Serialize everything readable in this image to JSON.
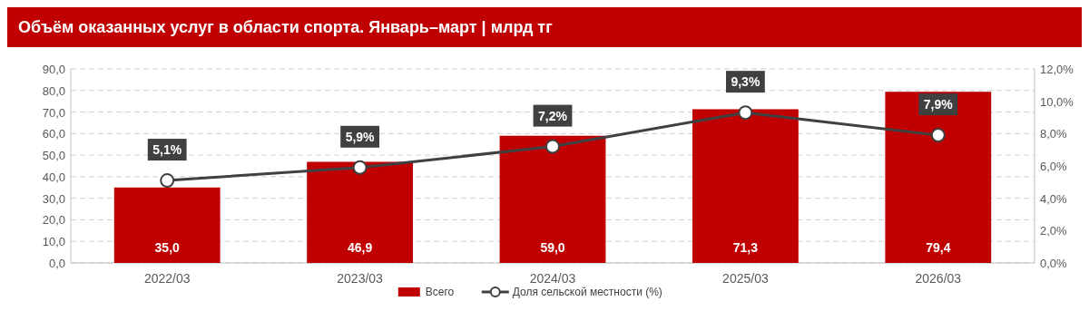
{
  "chart_data": {
    "type": "bar",
    "title": "Объём оказанных услуг в области спорта. Январь–март | млрд тг",
    "categories": [
      "2022/03",
      "2023/03",
      "2024/03",
      "2025/03",
      "2026/03"
    ],
    "series": [
      {
        "name": "Всего",
        "color": "#c00000",
        "values": [
          35.0,
          46.9,
          59.0,
          71.3,
          79.4
        ],
        "value_labels": [
          "35,0",
          "46,9",
          "59,0",
          "71,3",
          "79,4"
        ]
      },
      {
        "name": "Доля сельской местности (%)",
        "type": "line",
        "axis": "y2",
        "color": "#404040",
        "marker": "circle",
        "values": [
          5.1,
          5.9,
          7.2,
          9.3,
          7.9
        ],
        "value_labels": [
          "5,1%",
          "5,9%",
          "7,2%",
          "9,3%",
          "7,9%"
        ]
      }
    ],
    "ylim": [
      0,
      90
    ],
    "yticks": [
      {
        "value": 0,
        "label": "0,0"
      },
      {
        "value": 10,
        "label": "10,0"
      },
      {
        "value": 20,
        "label": "20,0"
      },
      {
        "value": 30,
        "label": "30,0"
      },
      {
        "value": 40,
        "label": "40,0"
      },
      {
        "value": 50,
        "label": "50,0"
      },
      {
        "value": 60,
        "label": "60,0"
      },
      {
        "value": 70,
        "label": "70,0"
      },
      {
        "value": 80,
        "label": "80,0"
      },
      {
        "value": 90,
        "label": "90,0"
      }
    ],
    "y2lim": [
      0,
      12
    ],
    "y2ticks": [
      {
        "value": 0,
        "label": "0,0%"
      },
      {
        "value": 2,
        "label": "2,0%"
      },
      {
        "value": 4,
        "label": "4,0%"
      },
      {
        "value": 6,
        "label": "6,0%"
      },
      {
        "value": 8,
        "label": "8,0%"
      },
      {
        "value": 10,
        "label": "10,0%"
      },
      {
        "value": 12,
        "label": "12,0%"
      }
    ],
    "grid": "y",
    "legend": "bottom"
  }
}
